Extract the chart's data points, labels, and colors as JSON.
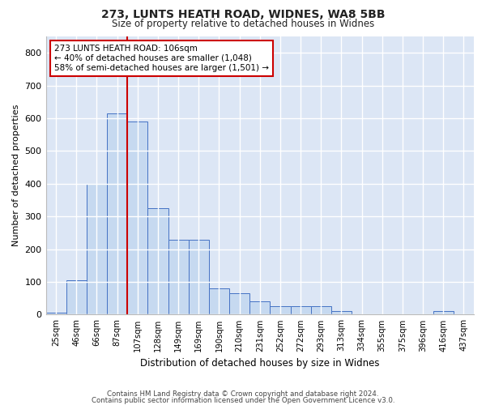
{
  "title1": "273, LUNTS HEATH ROAD, WIDNES, WA8 5BB",
  "title2": "Size of property relative to detached houses in Widnes",
  "xlabel": "Distribution of detached houses by size in Widnes",
  "ylabel": "Number of detached properties",
  "bar_labels": [
    "25sqm",
    "46sqm",
    "66sqm",
    "87sqm",
    "107sqm",
    "128sqm",
    "149sqm",
    "169sqm",
    "190sqm",
    "210sqm",
    "231sqm",
    "252sqm",
    "272sqm",
    "293sqm",
    "313sqm",
    "334sqm",
    "355sqm",
    "375sqm",
    "396sqm",
    "416sqm",
    "437sqm"
  ],
  "bar_values": [
    5,
    105,
    400,
    615,
    590,
    325,
    230,
    230,
    80,
    65,
    40,
    25,
    25,
    25,
    10,
    0,
    0,
    0,
    0,
    10,
    0
  ],
  "bar_color": "#c6d9f0",
  "bar_edge_color": "#4472c4",
  "vline_x": 3.5,
  "marker_label_line1": "273 LUNTS HEATH ROAD: 106sqm",
  "marker_label_line2": "← 40% of detached houses are smaller (1,048)",
  "marker_label_line3": "58% of semi-detached houses are larger (1,501) →",
  "vline_color": "#cc0000",
  "annotation_box_color": "#cc0000",
  "ylim": [
    0,
    850
  ],
  "yticks": [
    0,
    100,
    200,
    300,
    400,
    500,
    600,
    700,
    800
  ],
  "background_color": "#dce6f5",
  "grid_color": "#ffffff",
  "fig_bg_color": "#ffffff",
  "footer1": "Contains HM Land Registry data © Crown copyright and database right 2024.",
  "footer2": "Contains public sector information licensed under the Open Government Licence v3.0."
}
